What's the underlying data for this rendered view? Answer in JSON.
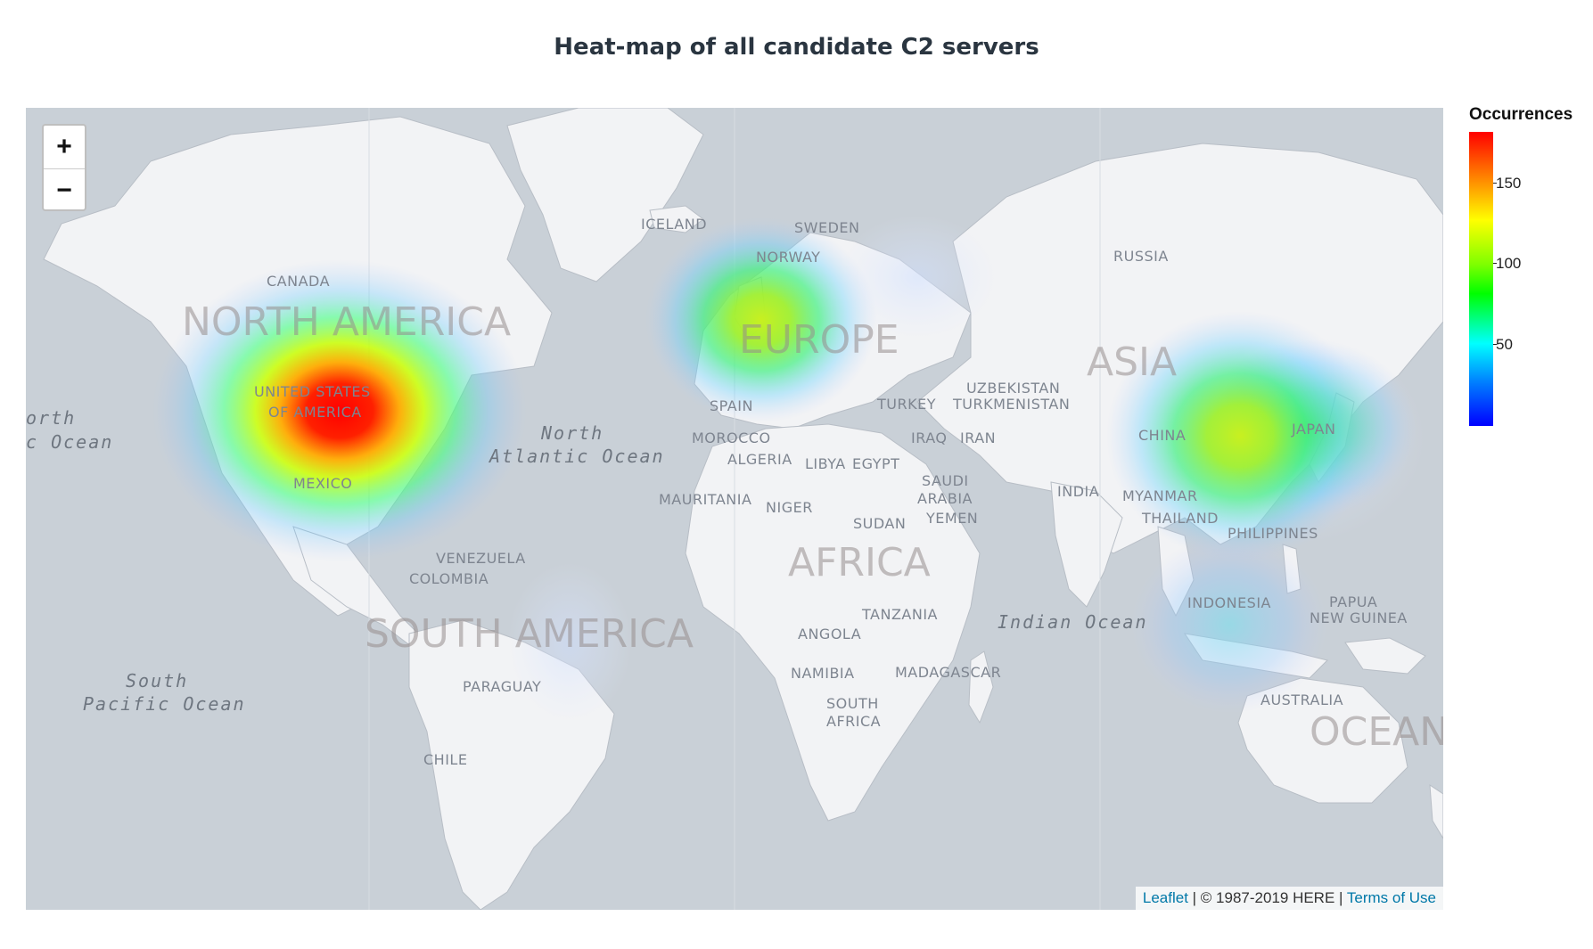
{
  "title": "Heat-map of all candidate C2 servers",
  "map": {
    "zoom_in_label": "+",
    "zoom_out_label": "−",
    "attribution": {
      "leaflet": "Leaflet",
      "separator1": " | © 1987-2019 HERE | ",
      "terms": "Terms of Use"
    },
    "labels": {
      "countries": [
        "CANADA",
        "UNITED STATES",
        "OF AMERICA",
        "MEXICO",
        "VENEZUELA",
        "COLOMBIA",
        "PARAGUAY",
        "CHILE",
        "ICELAND",
        "SWEDEN",
        "NORWAY",
        "SPAIN",
        "MOROCCO",
        "ALGERIA",
        "LIBYA",
        "EGYPT",
        "MAURITANIA",
        "NIGER",
        "SUDAN",
        "ANGOLA",
        "TANZANIA",
        "NAMIBIA",
        "MADAGASCAR",
        "SOUTH",
        "AFRICA",
        "TURKEY",
        "IRAQ",
        "IRAN",
        "SAUDI",
        "ARABIA",
        "YEMEN",
        "UZBEKISTAN",
        "TURKMENISTAN",
        "RUSSIA",
        "INDIA",
        "CHINA",
        "MYANMAR",
        "THAILAND",
        "PHILIPPINES",
        "JAPAN",
        "INDONESIA",
        "PAPUA",
        "NEW GUINEA",
        "AUSTRALIA"
      ],
      "continents": [
        "NORTH AMERICA",
        "EUROPE",
        "ASIA",
        "AFRICA",
        "SOUTH AMERICA",
        "OCEANI"
      ],
      "oceans": [
        "North",
        "Atlantic Ocean",
        "South",
        "Pacific Ocean",
        "orth",
        "c Ocean",
        "Indian Ocean"
      ]
    }
  },
  "legend": {
    "title": "Occurrences",
    "ticks": [
      "150",
      "100",
      "50"
    ],
    "range": [
      0,
      185
    ]
  },
  "heat_spots": [
    {
      "region": "United States",
      "intensity": 185
    },
    {
      "region": "Europe",
      "intensity": 110
    },
    {
      "region": "China",
      "intensity": 105
    },
    {
      "region": "Japan",
      "intensity": 90
    },
    {
      "region": "Southeast Asia",
      "intensity": 40
    },
    {
      "region": "Russia",
      "intensity": 30
    },
    {
      "region": "Brazil",
      "intensity": 25
    }
  ]
}
